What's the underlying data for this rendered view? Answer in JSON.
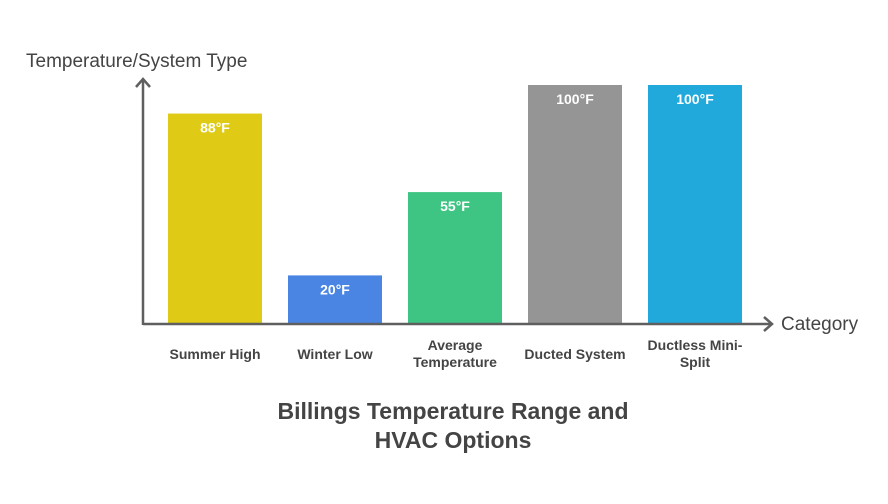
{
  "chart_data": {
    "type": "bar",
    "title_lines": [
      "Billings Temperature Range and",
      "HVAC Options"
    ],
    "ylabel": "Temperature/System Type",
    "xlabel": "Category",
    "ylim": [
      0,
      100
    ],
    "grid": false,
    "legend": "none",
    "categories": [
      {
        "lines": [
          "Summer High"
        ]
      },
      {
        "lines": [
          "Winter Low"
        ]
      },
      {
        "lines": [
          "Average",
          "Temperature"
        ]
      },
      {
        "lines": [
          "Ducted System"
        ]
      },
      {
        "lines": [
          "Ductless Mini-",
          "Split"
        ]
      }
    ],
    "values": [
      88,
      20,
      55,
      100,
      100
    ],
    "value_labels": [
      "88°F",
      "20°F",
      "55°F",
      "100°F",
      "100°F"
    ],
    "colors": [
      "#dfcb16",
      "#4a85e3",
      "#3ec583",
      "#959595",
      "#22a9dc"
    ]
  }
}
